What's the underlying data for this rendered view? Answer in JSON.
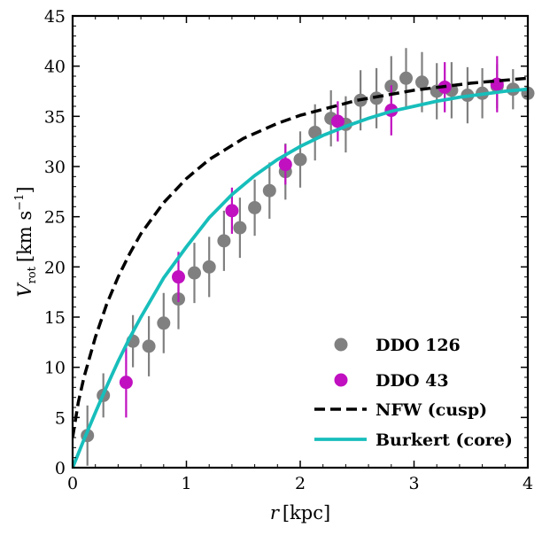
{
  "chart_data": {
    "type": "scatter",
    "xlabel": {
      "main": "r",
      "unit": "[kpc]"
    },
    "ylabel": {
      "main": "V",
      "sub": "rot",
      "unit_prefix": "[km s",
      "unit_sup": "−1",
      "unit_suffix": "]"
    },
    "xlim": [
      0,
      4
    ],
    "ylim": [
      0,
      45
    ],
    "xticks": [
      0,
      1,
      2,
      3,
      4
    ],
    "yticks": [
      0,
      5,
      10,
      15,
      20,
      25,
      30,
      35,
      40,
      45
    ],
    "legend_position": "bottom-right",
    "grid": false,
    "series": [
      {
        "name": "DDO 126",
        "kind": "points",
        "color": "#808080",
        "points": [
          {
            "x": 0.13,
            "y": 3.2,
            "err": 3.0
          },
          {
            "x": 0.27,
            "y": 7.2,
            "err": 2.2
          },
          {
            "x": 0.53,
            "y": 12.6,
            "err": 2.6
          },
          {
            "x": 0.67,
            "y": 12.1,
            "err": 3.0
          },
          {
            "x": 0.8,
            "y": 14.4,
            "err": 3.0
          },
          {
            "x": 0.93,
            "y": 16.8,
            "err": 3.0
          },
          {
            "x": 1.07,
            "y": 19.4,
            "err": 3.0
          },
          {
            "x": 1.2,
            "y": 20.0,
            "err": 3.0
          },
          {
            "x": 1.33,
            "y": 22.6,
            "err": 3.0
          },
          {
            "x": 1.47,
            "y": 23.9,
            "err": 3.0
          },
          {
            "x": 1.6,
            "y": 25.9,
            "err": 2.8
          },
          {
            "x": 1.73,
            "y": 27.6,
            "err": 2.8
          },
          {
            "x": 1.87,
            "y": 29.5,
            "err": 2.8
          },
          {
            "x": 2.0,
            "y": 30.7,
            "err": 2.8
          },
          {
            "x": 2.13,
            "y": 33.4,
            "err": 2.8
          },
          {
            "x": 2.27,
            "y": 34.8,
            "err": 2.8
          },
          {
            "x": 2.4,
            "y": 34.2,
            "err": 2.8
          },
          {
            "x": 2.53,
            "y": 36.6,
            "err": 3.0
          },
          {
            "x": 2.67,
            "y": 36.8,
            "err": 3.0
          },
          {
            "x": 2.8,
            "y": 38.0,
            "err": 3.0
          },
          {
            "x": 2.93,
            "y": 38.8,
            "err": 3.0
          },
          {
            "x": 3.07,
            "y": 38.4,
            "err": 3.0
          },
          {
            "x": 3.2,
            "y": 37.5,
            "err": 2.8
          },
          {
            "x": 3.33,
            "y": 37.6,
            "err": 2.8
          },
          {
            "x": 3.47,
            "y": 37.1,
            "err": 2.8
          },
          {
            "x": 3.6,
            "y": 37.3,
            "err": 2.5
          },
          {
            "x": 3.73,
            "y": 38.0,
            "err": 2.2
          },
          {
            "x": 3.87,
            "y": 37.7,
            "err": 2.0
          },
          {
            "x": 4.0,
            "y": 37.3,
            "err": 2.0
          }
        ]
      },
      {
        "name": "DDO 43",
        "kind": "points",
        "color": "#c010c0",
        "points": [
          {
            "x": 0.47,
            "y": 8.5,
            "err": 3.5
          },
          {
            "x": 0.93,
            "y": 19.0,
            "err": 2.5
          },
          {
            "x": 1.4,
            "y": 25.6,
            "err": 2.3
          },
          {
            "x": 1.87,
            "y": 30.2,
            "err": 2.0
          },
          {
            "x": 2.33,
            "y": 34.5,
            "err": 2.0
          },
          {
            "x": 2.8,
            "y": 35.6,
            "err": 2.5
          },
          {
            "x": 3.27,
            "y": 37.9,
            "err": 2.5
          },
          {
            "x": 3.73,
            "y": 38.2,
            "err": 2.8
          }
        ]
      },
      {
        "name": "NFW (cusp)",
        "kind": "line",
        "style": "dashed",
        "color": "#000000",
        "points": [
          {
            "x": 0.0,
            "y": 3.0
          },
          {
            "x": 0.05,
            "y": 6.5
          },
          {
            "x": 0.1,
            "y": 9.0
          },
          {
            "x": 0.2,
            "y": 13.0
          },
          {
            "x": 0.3,
            "y": 16.3
          },
          {
            "x": 0.4,
            "y": 19.0
          },
          {
            "x": 0.5,
            "y": 21.3
          },
          {
            "x": 0.6,
            "y": 23.3
          },
          {
            "x": 0.8,
            "y": 26.4
          },
          {
            "x": 1.0,
            "y": 28.8
          },
          {
            "x": 1.2,
            "y": 30.7
          },
          {
            "x": 1.5,
            "y": 32.8
          },
          {
            "x": 1.8,
            "y": 34.3
          },
          {
            "x": 2.0,
            "y": 35.1
          },
          {
            "x": 2.5,
            "y": 36.6
          },
          {
            "x": 3.0,
            "y": 37.6
          },
          {
            "x": 3.5,
            "y": 38.3
          },
          {
            "x": 4.0,
            "y": 38.8
          }
        ]
      },
      {
        "name": "Burkert (core)",
        "kind": "line",
        "style": "solid",
        "color": "#17bebb",
        "points": [
          {
            "x": 0.0,
            "y": 0.0
          },
          {
            "x": 0.1,
            "y": 2.8
          },
          {
            "x": 0.2,
            "y": 5.5
          },
          {
            "x": 0.3,
            "y": 8.1
          },
          {
            "x": 0.4,
            "y": 10.6
          },
          {
            "x": 0.5,
            "y": 12.9
          },
          {
            "x": 0.6,
            "y": 15.0
          },
          {
            "x": 0.8,
            "y": 18.9
          },
          {
            "x": 1.0,
            "y": 22.0
          },
          {
            "x": 1.2,
            "y": 24.9
          },
          {
            "x": 1.4,
            "y": 27.2
          },
          {
            "x": 1.6,
            "y": 29.1
          },
          {
            "x": 1.8,
            "y": 30.7
          },
          {
            "x": 2.0,
            "y": 32.0
          },
          {
            "x": 2.2,
            "y": 33.1
          },
          {
            "x": 2.4,
            "y": 34.0
          },
          {
            "x": 2.6,
            "y": 34.8
          },
          {
            "x": 2.8,
            "y": 35.5
          },
          {
            "x": 3.0,
            "y": 36.0
          },
          {
            "x": 3.2,
            "y": 36.5
          },
          {
            "x": 3.4,
            "y": 36.9
          },
          {
            "x": 3.6,
            "y": 37.2
          },
          {
            "x": 3.8,
            "y": 37.5
          },
          {
            "x": 4.0,
            "y": 37.7
          }
        ]
      }
    ]
  }
}
